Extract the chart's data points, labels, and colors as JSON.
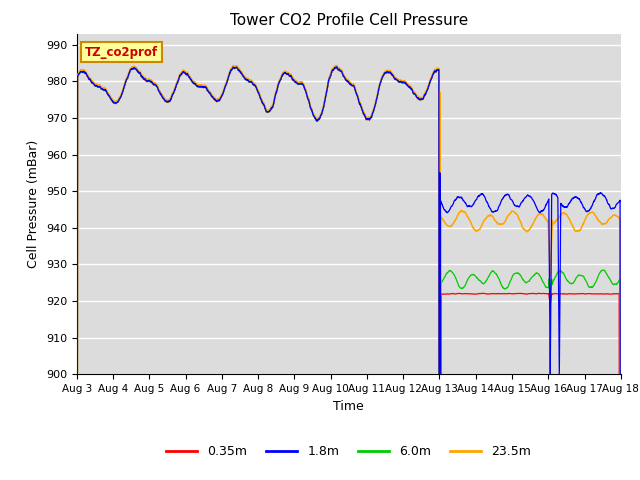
{
  "title": "Tower CO2 Profile Cell Pressure",
  "xlabel": "Time",
  "ylabel": "Cell Pressure (mBar)",
  "ylim": [
    900,
    993
  ],
  "yticks": [
    900,
    910,
    920,
    930,
    940,
    950,
    960,
    970,
    980,
    990
  ],
  "x_labels": [
    "Aug 3",
    "Aug 4",
    "Aug 5",
    "Aug 6",
    "Aug 7",
    "Aug 8",
    "Aug 9",
    "Aug 10",
    "Aug 11",
    "Aug 12",
    "Aug 13",
    "Aug 14",
    "Aug 15",
    "Aug 16",
    "Aug 17",
    "Aug 18"
  ],
  "legend_labels": [
    "0.35m",
    "1.8m",
    "6.0m",
    "23.5m"
  ],
  "legend_colors": [
    "#ff0000",
    "#0000ff",
    "#00cc00",
    "#ffa500"
  ],
  "annotation_text": "TZ_co2prof",
  "annotation_bg": "#ffff99",
  "annotation_border": "#cc8800",
  "background_color": "#dcdcdc",
  "grid_color": "#ffffff",
  "title_fontsize": 11,
  "axis_label_fontsize": 9,
  "tick_fontsize": 8
}
